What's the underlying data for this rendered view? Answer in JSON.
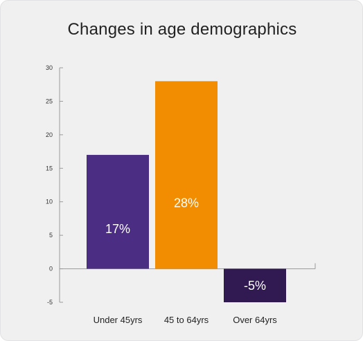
{
  "chart_data": {
    "type": "bar",
    "title": "Changes in age demographics",
    "xlabel": "",
    "ylabel": "",
    "categories": [
      "Under 45yrs",
      "45 to 64yrs",
      "Over 64yrs"
    ],
    "values": [
      17,
      28,
      -5
    ],
    "data_labels": [
      "17%",
      "28%",
      "-5%"
    ],
    "colors": [
      "#4b2e83",
      "#f28c00",
      "#311a52"
    ],
    "ylim": [
      -5,
      30
    ],
    "yticks": [
      30,
      25,
      20,
      15,
      10,
      5,
      0,
      -5
    ],
    "grid": false,
    "legend": "none"
  }
}
